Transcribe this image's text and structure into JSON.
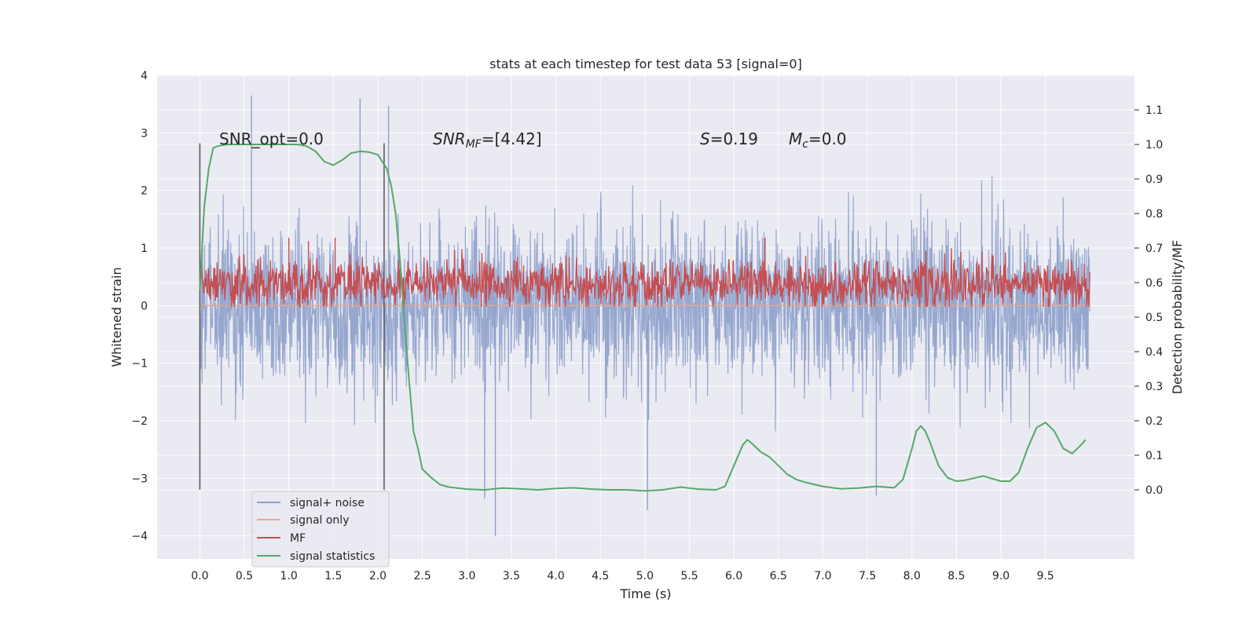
{
  "chart_data": {
    "type": "line",
    "title": "stats at each timestep for test data 53 [signal=0]",
    "xlabel": "Time (s)",
    "ylabel": "Whitened strain",
    "y2label": "Detection probability/MF",
    "xlim": [
      -0.48,
      10.5
    ],
    "ylim": [
      -4.4,
      4.0
    ],
    "y2lim": [
      -0.2,
      1.2
    ],
    "xticks": [
      "0.0",
      "0.5",
      "1.0",
      "1.5",
      "2.0",
      "2.5",
      "3.0",
      "3.5",
      "4.0",
      "4.5",
      "5.0",
      "5.5",
      "6.0",
      "6.5",
      "7.0",
      "7.5",
      "8.0",
      "8.5",
      "9.0",
      "9.5"
    ],
    "yticks": [
      "4",
      "3",
      "2",
      "1",
      "0",
      "−1",
      "−2",
      "−3",
      "−4"
    ],
    "y2ticks": [
      "1.1",
      "1.0",
      "0.9",
      "0.8",
      "0.7",
      "0.6",
      "0.5",
      "0.4",
      "0.3",
      "0.2",
      "0.1",
      "0.0"
    ],
    "grid": true,
    "legend_position": "lower-left",
    "annotations": {
      "snr_opt": "SNR_opt=0.0",
      "snr_mf_base": "SNR",
      "snr_mf_sub": "MF",
      "snr_mf_value": "=[4.42]",
      "s_base": "S",
      "s_value": "=0.19",
      "mc_base": "M",
      "mc_sub": "c",
      "mc_value": "=0.0"
    },
    "vlines": [
      0.0,
      2.07
    ],
    "colors": {
      "noise": "#8da0cb",
      "signal_only": "#e8a88c",
      "mf": "#c44e52",
      "stats": "#55a868",
      "vline": "#555555",
      "bg": "#eaeaf2",
      "grid": "#ffffff"
    },
    "series": [
      {
        "name": "signal+ noise",
        "x_range": [
          0.0,
          10.0
        ],
        "n_points": 2400,
        "y_center": 0.0,
        "y_spread": 1.6,
        "y_extremes": [
          [
            0.58,
            3.65
          ],
          [
            1.8,
            3.6
          ],
          [
            2.12,
            3.47
          ],
          [
            3.32,
            -4.0
          ],
          [
            5.03,
            -3.55
          ],
          [
            3.2,
            -3.35
          ],
          [
            7.6,
            -3.3
          ]
        ]
      },
      {
        "name": "signal only",
        "x": [
          0.0,
          10.0
        ],
        "y": [
          0.0,
          0.0
        ]
      },
      {
        "name": "MF",
        "x_range": [
          0.0,
          10.0
        ],
        "n_points": 1600,
        "y2_center": 0.595,
        "y2_spread": 0.1,
        "y2_extremes": [
          [
            1.0,
            0.73
          ],
          [
            1.52,
            0.73
          ],
          [
            6.35,
            0.73
          ],
          [
            1.22,
            0.72
          ]
        ]
      },
      {
        "name": "signal statistics",
        "x": [
          0.0,
          0.05,
          0.1,
          0.15,
          0.2,
          0.3,
          0.5,
          0.8,
          1.0,
          1.1,
          1.2,
          1.3,
          1.4,
          1.5,
          1.6,
          1.7,
          1.8,
          1.9,
          2.0,
          2.1,
          2.15,
          2.2,
          2.25,
          2.3,
          2.35,
          2.4,
          2.45,
          2.5,
          2.6,
          2.7,
          2.8,
          3.0,
          3.2,
          3.4,
          3.6,
          3.8,
          4.0,
          4.2,
          4.4,
          4.6,
          4.8,
          5.0,
          5.2,
          5.4,
          5.6,
          5.8,
          5.9,
          6.0,
          6.1,
          6.15,
          6.2,
          6.3,
          6.4,
          6.5,
          6.6,
          6.7,
          6.8,
          6.9,
          7.0,
          7.2,
          7.4,
          7.6,
          7.8,
          7.9,
          8.0,
          8.05,
          8.1,
          8.15,
          8.2,
          8.3,
          8.4,
          8.5,
          8.6,
          8.8,
          9.0,
          9.1,
          9.2,
          9.3,
          9.4,
          9.5,
          9.6,
          9.7,
          9.8,
          9.9,
          9.95
        ],
        "y2": [
          0.58,
          0.82,
          0.93,
          0.99,
          0.995,
          1.0,
          1.0,
          1.0,
          1.0,
          1.0,
          0.995,
          0.98,
          0.95,
          0.94,
          0.955,
          0.975,
          0.98,
          0.978,
          0.97,
          0.93,
          0.88,
          0.8,
          0.66,
          0.48,
          0.32,
          0.17,
          0.12,
          0.06,
          0.035,
          0.015,
          0.008,
          0.002,
          0.0,
          0.005,
          0.003,
          0.0,
          0.004,
          0.006,
          0.002,
          0.0,
          0.0,
          -0.003,
          0.0,
          0.008,
          0.002,
          0.0,
          0.01,
          0.07,
          0.13,
          0.145,
          0.135,
          0.11,
          0.095,
          0.07,
          0.045,
          0.03,
          0.022,
          0.016,
          0.01,
          0.003,
          0.005,
          0.01,
          0.006,
          0.03,
          0.12,
          0.17,
          0.185,
          0.17,
          0.14,
          0.07,
          0.035,
          0.025,
          0.028,
          0.04,
          0.025,
          0.025,
          0.05,
          0.12,
          0.18,
          0.195,
          0.17,
          0.12,
          0.105,
          0.13,
          0.145
        ]
      }
    ]
  }
}
